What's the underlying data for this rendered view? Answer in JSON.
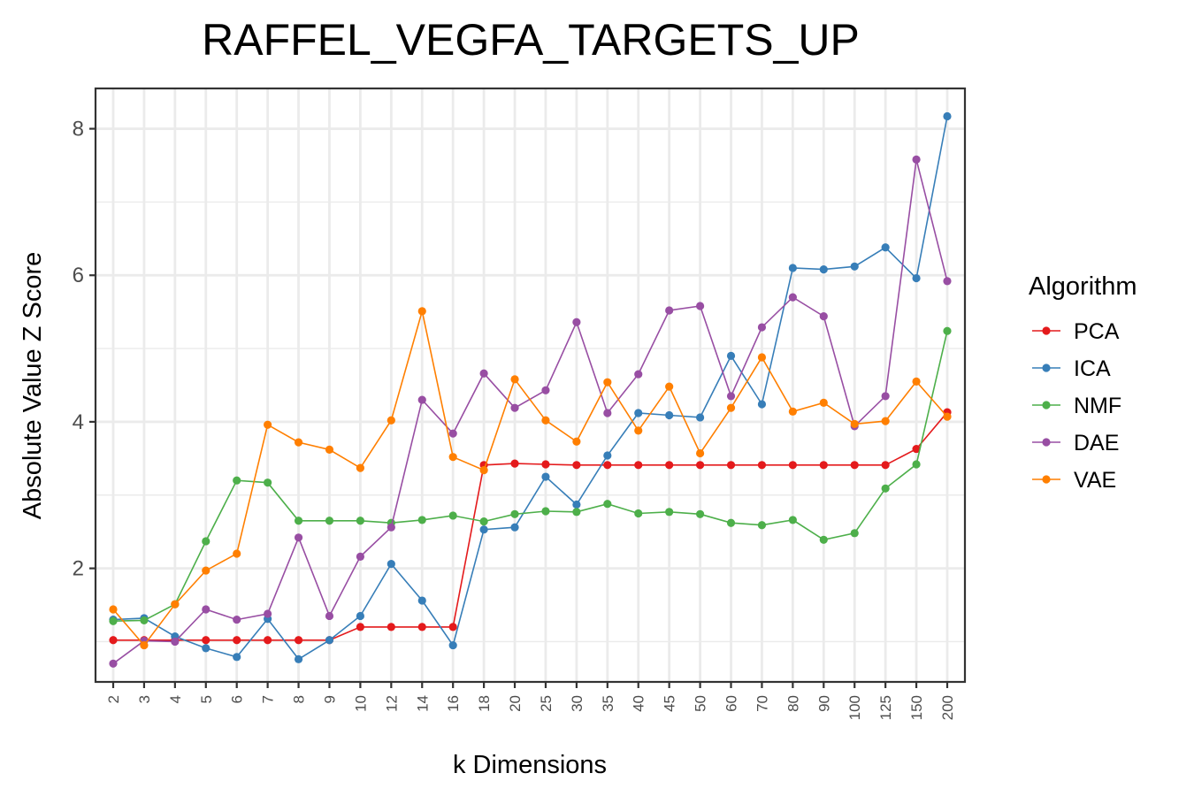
{
  "chart_data": {
    "type": "line",
    "title": "RAFFEL_VEGFA_TARGETS_UP",
    "xlabel": "k Dimensions",
    "ylabel": "Absolute Value Z Score",
    "ylim": [
      0.45,
      8.55
    ],
    "yticks": [
      2,
      4,
      6,
      8
    ],
    "grid": true,
    "legend_title": "Algorithm",
    "legend_position": "right",
    "categories": [
      "2",
      "3",
      "4",
      "5",
      "6",
      "7",
      "8",
      "9",
      "10",
      "12",
      "14",
      "16",
      "18",
      "20",
      "25",
      "30",
      "35",
      "40",
      "45",
      "50",
      "60",
      "70",
      "80",
      "90",
      "100",
      "125",
      "150",
      "200"
    ],
    "series": [
      {
        "name": "PCA",
        "color": "#E41A1C",
        "values": [
          1.02,
          1.02,
          1.02,
          1.02,
          1.02,
          1.02,
          1.02,
          1.02,
          1.2,
          1.2,
          1.2,
          1.2,
          3.41,
          3.43,
          3.42,
          3.41,
          3.41,
          3.41,
          3.41,
          3.41,
          3.41,
          3.41,
          3.41,
          3.41,
          3.41,
          3.41,
          3.63,
          4.13
        ]
      },
      {
        "name": "ICA",
        "color": "#377EB8",
        "values": [
          1.3,
          1.32,
          1.07,
          0.91,
          0.79,
          1.31,
          0.76,
          1.02,
          1.35,
          2.06,
          1.56,
          0.95,
          2.53,
          2.56,
          3.25,
          2.87,
          3.54,
          4.12,
          4.09,
          4.06,
          4.9,
          4.24,
          6.1,
          6.08,
          6.12,
          6.38,
          5.96,
          8.17
        ]
      },
      {
        "name": "NMF",
        "color": "#4DAF4A",
        "values": [
          1.28,
          1.29,
          1.51,
          2.37,
          3.2,
          3.17,
          2.65,
          2.65,
          2.65,
          2.62,
          2.66,
          2.72,
          2.64,
          2.74,
          2.78,
          2.77,
          2.88,
          2.75,
          2.77,
          2.74,
          2.62,
          2.59,
          2.66,
          2.39,
          2.48,
          3.09,
          3.42,
          5.24
        ]
      },
      {
        "name": "DAE",
        "color": "#984EA3",
        "values": [
          0.7,
          1.01,
          1.0,
          1.44,
          1.3,
          1.38,
          2.42,
          1.35,
          2.16,
          2.56,
          4.3,
          3.84,
          4.66,
          4.19,
          4.43,
          5.36,
          4.12,
          4.65,
          5.52,
          5.58,
          4.35,
          5.29,
          5.7,
          5.44,
          3.94,
          4.35,
          7.58,
          5.92
        ]
      },
      {
        "name": "VAE",
        "color": "#FF7F00",
        "values": [
          1.44,
          0.95,
          1.51,
          1.97,
          2.2,
          3.96,
          3.72,
          3.62,
          3.37,
          4.02,
          5.51,
          3.52,
          3.34,
          4.58,
          4.02,
          3.73,
          4.54,
          3.88,
          4.48,
          3.57,
          4.19,
          4.88,
          4.14,
          4.26,
          3.97,
          4.01,
          4.55,
          4.07
        ]
      }
    ]
  }
}
